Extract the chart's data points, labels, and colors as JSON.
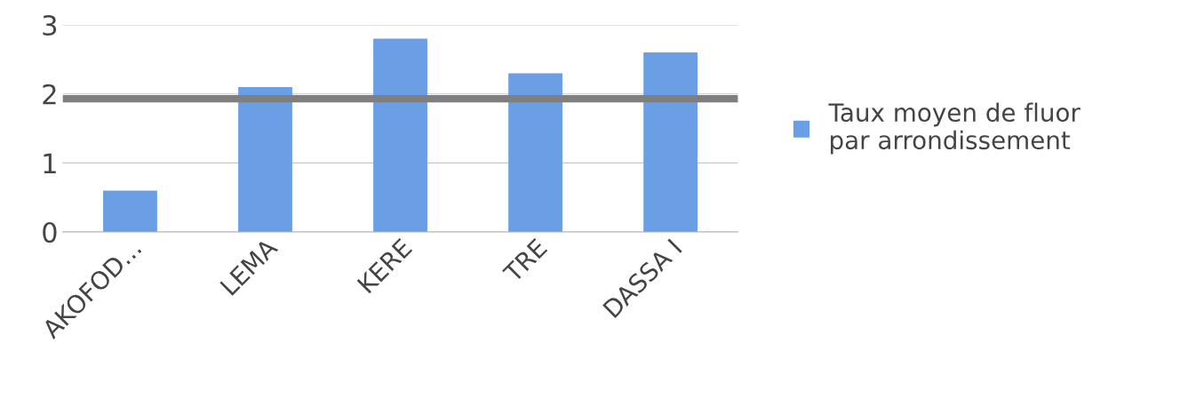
{
  "chart_data": {
    "type": "bar",
    "categories": [
      "AKOFOD...",
      "LEMA",
      "KERE",
      "TRE",
      "DASSA I"
    ],
    "series": [
      {
        "name": "Taux moyen de fluor\npar arrondissement",
        "color": "#6a9fe6",
        "values": [
          0.6,
          2.1,
          2.8,
          2.3,
          2.6
        ]
      }
    ],
    "ylim": [
      0,
      3
    ],
    "yticks": [
      0,
      1,
      2,
      3
    ],
    "grid": "y",
    "legend": "right",
    "ref_lines": [
      {
        "axis": "y",
        "value": 1.93,
        "color": "#7f7f7f"
      }
    ]
  }
}
